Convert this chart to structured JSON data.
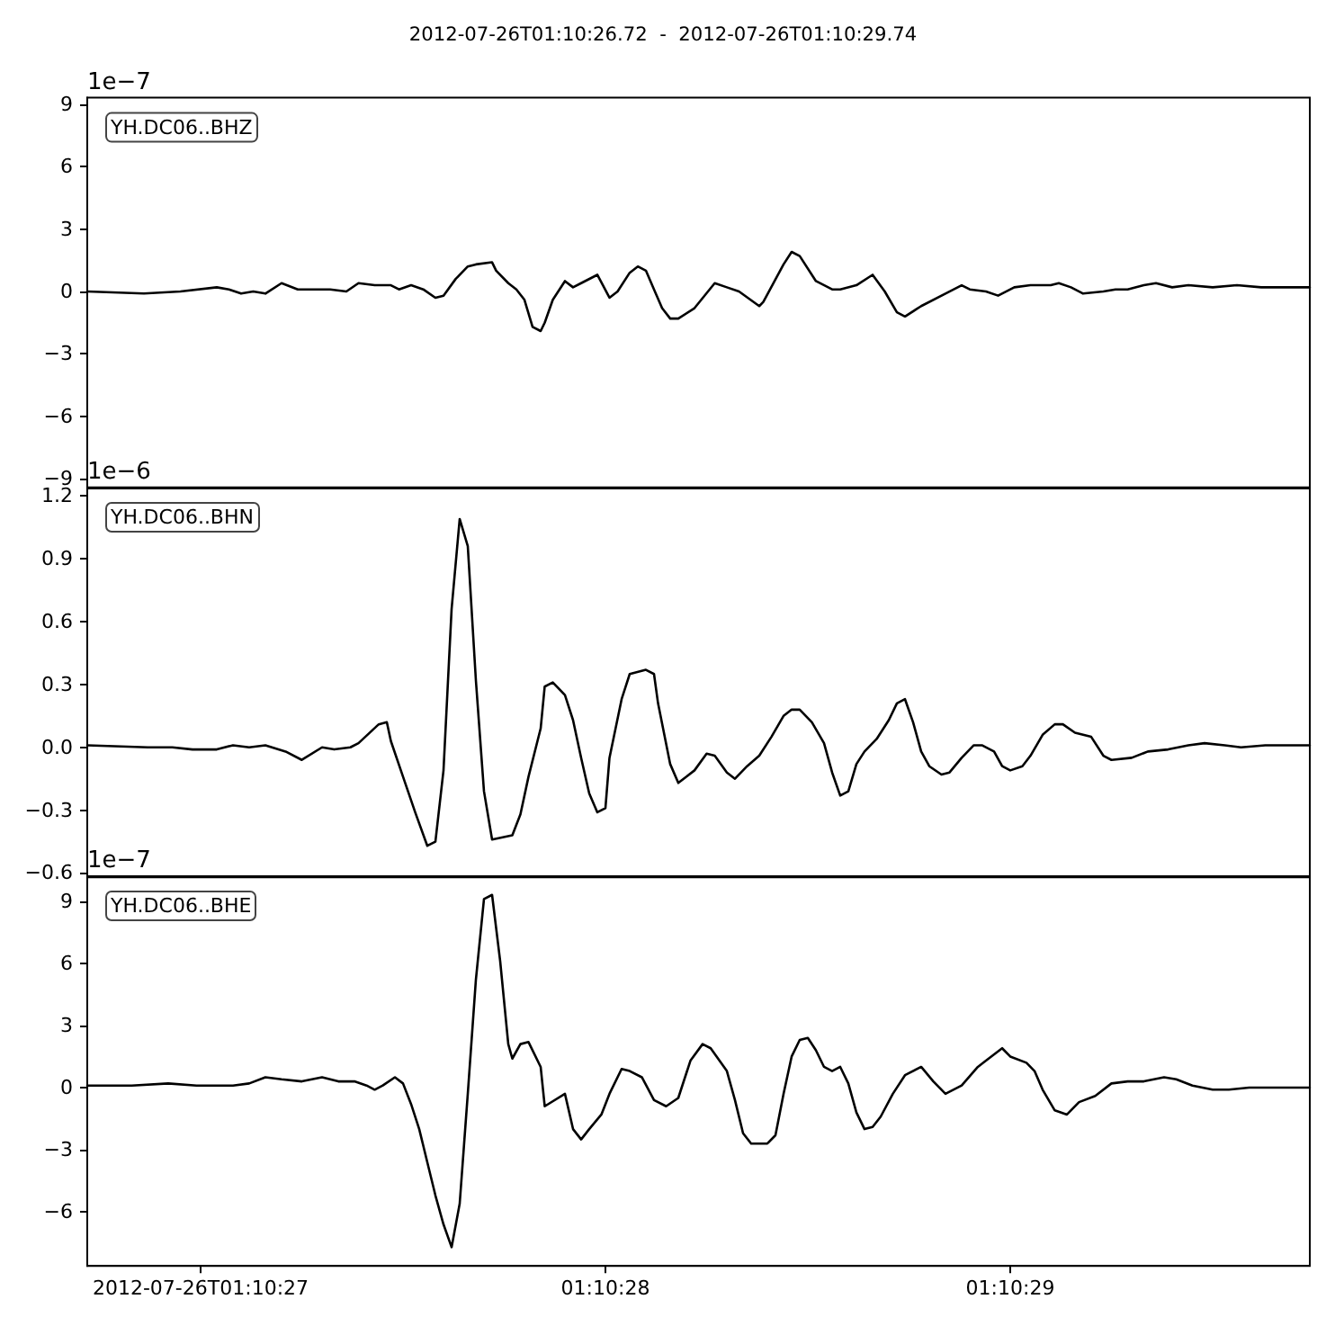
{
  "chart_data": [
    {
      "type": "line",
      "title": "2012-07-26T01:10:26.72  -  2012-07-26T01:10:29.74",
      "ylabel": "1e−7",
      "annotations": [
        "YH.DC06..BHZ"
      ],
      "color": "#000000",
      "tick_labels": "y",
      "xlim": [
        "2012-07-26T01:10:26.72",
        "2012-07-26T01:10:29.74"
      ],
      "ylim": [
        -9.4,
        9.3
      ],
      "yticks": [
        {
          "value": -9,
          "label": "−9"
        },
        {
          "value": -6,
          "label": "−6"
        },
        {
          "value": -3,
          "label": "−3"
        },
        0,
        3,
        6,
        9
      ],
      "x": [
        "2012-07-26T01:10:26.72",
        "2012-07-26T01:10:26.86",
        "2012-07-26T01:10:26.95",
        "2012-07-26T01:10:27.04",
        "2012-07-26T01:10:27.07",
        "2012-07-26T01:10:27.10",
        "2012-07-26T01:10:27.13",
        "2012-07-26T01:10:27.16",
        "2012-07-26T01:10:27.20",
        "2012-07-26T01:10:27.24",
        "2012-07-26T01:10:27.27",
        "2012-07-26T01:10:27.32",
        "2012-07-26T01:10:27.36",
        "2012-07-26T01:10:27.39",
        "2012-07-26T01:10:27.43",
        "2012-07-26T01:10:27.47",
        "2012-07-26T01:10:27.49",
        "2012-07-26T01:10:27.52",
        "2012-07-26T01:10:27.55",
        "2012-07-26T01:10:27.58",
        "2012-07-26T01:10:27.60",
        "2012-07-26T01:10:27.63",
        "2012-07-26T01:10:27.66",
        "2012-07-26T01:10:27.68",
        "2012-07-26T01:10:27.72",
        "2012-07-26T01:10:27.73",
        "2012-07-26T01:10:27.76",
        "2012-07-26T01:10:27.78",
        "2012-07-26T01:10:27.80",
        "2012-07-26T01:10:27.82",
        "2012-07-26T01:10:27.84",
        "2012-07-26T01:10:27.85",
        "2012-07-26T01:10:27.87",
        "2012-07-26T01:10:27.90",
        "2012-07-26T01:10:27.92",
        "2012-07-26T01:10:27.94",
        "2012-07-26T01:10:27.98",
        "2012-07-26T01:10:28.01",
        "2012-07-26T01:10:28.03",
        "2012-07-26T01:10:28.06",
        "2012-07-26T01:10:28.08",
        "2012-07-26T01:10:28.10",
        "2012-07-26T01:10:28.12",
        "2012-07-26T01:10:28.14",
        "2012-07-26T01:10:28.16",
        "2012-07-26T01:10:28.18",
        "2012-07-26T01:10:28.22",
        "2012-07-26T01:10:28.27",
        "2012-07-26T01:10:28.30",
        "2012-07-26T01:10:28.33",
        "2012-07-26T01:10:28.38",
        "2012-07-26T01:10:28.39",
        "2012-07-26T01:10:28.44",
        "2012-07-26T01:10:28.46",
        "2012-07-26T01:10:28.48",
        "2012-07-26T01:10:28.52",
        "2012-07-26T01:10:28.56",
        "2012-07-26T01:10:28.58",
        "2012-07-26T01:10:28.62",
        "2012-07-26T01:10:28.66",
        "2012-07-26T01:10:28.69",
        "2012-07-26T01:10:28.72",
        "2012-07-26T01:10:28.74",
        "2012-07-26T01:10:28.78",
        "2012-07-26T01:10:28.84",
        "2012-07-26T01:10:28.88",
        "2012-07-26T01:10:28.90",
        "2012-07-26T01:10:28.94",
        "2012-07-26T01:10:28.97",
        "2012-07-26T01:10:29.01",
        "2012-07-26T01:10:29.05",
        "2012-07-26T01:10:29.10",
        "2012-07-26T01:10:29.12",
        "2012-07-26T01:10:29.15",
        "2012-07-26T01:10:29.18",
        "2012-07-26T01:10:29.23",
        "2012-07-26T01:10:29.26",
        "2012-07-26T01:10:29.29",
        "2012-07-26T01:10:29.33",
        "2012-07-26T01:10:29.36",
        "2012-07-26T01:10:29.40",
        "2012-07-26T01:10:29.44",
        "2012-07-26T01:10:29.50",
        "2012-07-26T01:10:29.56",
        "2012-07-26T01:10:29.62",
        "2012-07-26T01:10:29.67",
        "2012-07-26T01:10:29.74"
      ],
      "values": [
        0.0,
        -0.1,
        0.0,
        0.2,
        0.1,
        -0.1,
        0.0,
        -0.1,
        0.4,
        0.1,
        0.1,
        0.1,
        0.0,
        0.4,
        0.3,
        0.3,
        0.1,
        0.3,
        0.1,
        -0.3,
        -0.2,
        0.6,
        1.2,
        1.3,
        1.4,
        1.0,
        0.4,
        0.1,
        -0.4,
        -1.7,
        -1.9,
        -1.5,
        -0.4,
        0.5,
        0.2,
        0.4,
        0.8,
        -0.3,
        0.0,
        0.9,
        1.2,
        1.0,
        0.1,
        -0.8,
        -1.3,
        -1.3,
        -0.8,
        0.4,
        0.2,
        0.0,
        -0.7,
        -0.5,
        1.3,
        1.9,
        1.7,
        0.5,
        0.1,
        0.1,
        0.3,
        0.8,
        0.0,
        -1.0,
        -1.2,
        -0.7,
        -0.1,
        0.3,
        0.1,
        0.0,
        -0.2,
        0.2,
        0.3,
        0.3,
        0.4,
        0.2,
        -0.1,
        0.0,
        0.1,
        0.1,
        0.3,
        0.4,
        0.2,
        0.3,
        0.2,
        0.3,
        0.2,
        0.2,
        0.2
      ]
    },
    {
      "type": "line",
      "ylabel": "1e−6",
      "annotations": [
        "YH.DC06..BHN"
      ],
      "color": "#000000",
      "tick_labels": "y",
      "xlim": [
        "2012-07-26T01:10:26.72",
        "2012-07-26T01:10:29.74"
      ],
      "ylim": [
        -0.62,
        1.24
      ],
      "yticks": [
        {
          "value": -0.6,
          "label": "−0.6"
        },
        {
          "value": -0.3,
          "label": "−0.3"
        },
        {
          "value": 0,
          "label": "0.0"
        },
        0.3,
        0.6,
        0.9,
        1.2
      ],
      "x": [
        "2012-07-26T01:10:26.72",
        "2012-07-26T01:10:26.87",
        "2012-07-26T01:10:26.93",
        "2012-07-26T01:10:26.98",
        "2012-07-26T01:10:27.04",
        "2012-07-26T01:10:27.08",
        "2012-07-26T01:10:27.12",
        "2012-07-26T01:10:27.16",
        "2012-07-26T01:10:27.21",
        "2012-07-26T01:10:27.25",
        "2012-07-26T01:10:27.30",
        "2012-07-26T01:10:27.33",
        "2012-07-26T01:10:27.37",
        "2012-07-26T01:10:27.39",
        "2012-07-26T01:10:27.44",
        "2012-07-26T01:10:27.46",
        "2012-07-26T01:10:27.47",
        "2012-07-26T01:10:27.50",
        "2012-07-26T01:10:27.53",
        "2012-07-26T01:10:27.56",
        "2012-07-26T01:10:27.58",
        "2012-07-26T01:10:27.60",
        "2012-07-26T01:10:27.62",
        "2012-07-26T01:10:27.64",
        "2012-07-26T01:10:27.66",
        "2012-07-26T01:10:27.68",
        "2012-07-26T01:10:27.70",
        "2012-07-26T01:10:27.72",
        "2012-07-26T01:10:27.77",
        "2012-07-26T01:10:27.79",
        "2012-07-26T01:10:27.81",
        "2012-07-26T01:10:27.84",
        "2012-07-26T01:10:27.85",
        "2012-07-26T01:10:27.87",
        "2012-07-26T01:10:27.90",
        "2012-07-26T01:10:27.92",
        "2012-07-26T01:10:27.94",
        "2012-07-26T01:10:27.96",
        "2012-07-26T01:10:27.98",
        "2012-07-26T01:10:28.00",
        "2012-07-26T01:10:28.01",
        "2012-07-26T01:10:28.04",
        "2012-07-26T01:10:28.06",
        "2012-07-26T01:10:28.10",
        "2012-07-26T01:10:28.12",
        "2012-07-26T01:10:28.13",
        "2012-07-26T01:10:28.16",
        "2012-07-26T01:10:28.18",
        "2012-07-26T01:10:28.22",
        "2012-07-26T01:10:28.25",
        "2012-07-26T01:10:28.27",
        "2012-07-26T01:10:28.30",
        "2012-07-26T01:10:28.32",
        "2012-07-26T01:10:28.35",
        "2012-07-26T01:10:28.38",
        "2012-07-26T01:10:28.41",
        "2012-07-26T01:10:28.44",
        "2012-07-26T01:10:28.46",
        "2012-07-26T01:10:28.48",
        "2012-07-26T01:10:28.51",
        "2012-07-26T01:10:28.54",
        "2012-07-26T01:10:28.56",
        "2012-07-26T01:10:28.58",
        "2012-07-26T01:10:28.60",
        "2012-07-26T01:10:28.62",
        "2012-07-26T01:10:28.64",
        "2012-07-26T01:10:28.67",
        "2012-07-26T01:10:28.70",
        "2012-07-26T01:10:28.72",
        "2012-07-26T01:10:28.74",
        "2012-07-26T01:10:28.76",
        "2012-07-26T01:10:28.78",
        "2012-07-26T01:10:28.80",
        "2012-07-26T01:10:28.83",
        "2012-07-26T01:10:28.85",
        "2012-07-26T01:10:28.88",
        "2012-07-26T01:10:28.91",
        "2012-07-26T01:10:28.93",
        "2012-07-26T01:10:28.96",
        "2012-07-26T01:10:28.98",
        "2012-07-26T01:10:29.00",
        "2012-07-26T01:10:29.03",
        "2012-07-26T01:10:29.05",
        "2012-07-26T01:10:29.08",
        "2012-07-26T01:10:29.11",
        "2012-07-26T01:10:29.13",
        "2012-07-26T01:10:29.16",
        "2012-07-26T01:10:29.20",
        "2012-07-26T01:10:29.23",
        "2012-07-26T01:10:29.25",
        "2012-07-26T01:10:29.30",
        "2012-07-26T01:10:29.34",
        "2012-07-26T01:10:29.39",
        "2012-07-26T01:10:29.44",
        "2012-07-26T01:10:29.48",
        "2012-07-26T01:10:29.53",
        "2012-07-26T01:10:29.57",
        "2012-07-26T01:10:29.63",
        "2012-07-26T01:10:29.74"
      ],
      "values": [
        0.01,
        0.0,
        0.0,
        -0.01,
        -0.01,
        0.01,
        0.0,
        0.01,
        -0.02,
        -0.06,
        0.0,
        -0.01,
        0.0,
        0.02,
        0.11,
        0.12,
        0.03,
        -0.14,
        -0.31,
        -0.47,
        -0.45,
        -0.11,
        0.66,
        1.09,
        0.96,
        0.32,
        -0.21,
        -0.44,
        -0.42,
        -0.32,
        -0.14,
        0.09,
        0.29,
        0.31,
        0.25,
        0.13,
        -0.05,
        -0.22,
        -0.31,
        -0.29,
        -0.05,
        0.23,
        0.35,
        0.37,
        0.35,
        0.21,
        -0.08,
        -0.17,
        -0.11,
        -0.03,
        -0.04,
        -0.12,
        -0.15,
        -0.09,
        -0.04,
        0.05,
        0.15,
        0.18,
        0.18,
        0.12,
        0.02,
        -0.12,
        -0.23,
        -0.21,
        -0.08,
        -0.02,
        0.04,
        0.13,
        0.21,
        0.23,
        0.12,
        -0.02,
        -0.09,
        -0.13,
        -0.12,
        -0.05,
        0.01,
        0.01,
        -0.02,
        -0.09,
        -0.11,
        -0.09,
        -0.04,
        0.06,
        0.11,
        0.11,
        0.07,
        0.05,
        -0.04,
        -0.06,
        -0.05,
        -0.02,
        -0.01,
        0.01,
        0.02,
        0.01,
        0.0,
        0.01,
        0.01
      ]
    },
    {
      "type": "line",
      "ylabel": "1e−7",
      "annotations": [
        "YH.DC06..BHE"
      ],
      "color": "#000000",
      "xlim": [
        "2012-07-26T01:10:26.72",
        "2012-07-26T01:10:29.74"
      ],
      "xticks": [
        {
          "value": "2012-07-26T01:10:27",
          "label": "2012-07-26T01:10:27"
        },
        {
          "value": "2012-07-26T01:10:28",
          "label": "01:10:28"
        },
        {
          "value": "2012-07-26T01:10:29",
          "label": "01:10:29"
        }
      ],
      "ylim": [
        -8.6,
        10.2
      ],
      "yticks": [
        {
          "value": -6,
          "label": "−6"
        },
        {
          "value": -3,
          "label": "−3"
        },
        0,
        3,
        6,
        9
      ],
      "x": [
        "2012-07-26T01:10:26.72",
        "2012-07-26T01:10:26.83",
        "2012-07-26T01:10:26.92",
        "2012-07-26T01:10:26.99",
        "2012-07-26T01:10:27.04",
        "2012-07-26T01:10:27.08",
        "2012-07-26T01:10:27.12",
        "2012-07-26T01:10:27.16",
        "2012-07-26T01:10:27.20",
        "2012-07-26T01:10:27.25",
        "2012-07-26T01:10:27.30",
        "2012-07-26T01:10:27.34",
        "2012-07-26T01:10:27.38",
        "2012-07-26T01:10:27.41",
        "2012-07-26T01:10:27.43",
        "2012-07-26T01:10:27.45",
        "2012-07-26T01:10:27.48",
        "2012-07-26T01:10:27.50",
        "2012-07-26T01:10:27.52",
        "2012-07-26T01:10:27.54",
        "2012-07-26T01:10:27.56",
        "2012-07-26T01:10:27.58",
        "2012-07-26T01:10:27.60",
        "2012-07-26T01:10:27.62",
        "2012-07-26T01:10:27.64",
        "2012-07-26T01:10:27.66",
        "2012-07-26T01:10:27.68",
        "2012-07-26T01:10:27.70",
        "2012-07-26T01:10:27.72",
        "2012-07-26T01:10:27.74",
        "2012-07-26T01:10:27.76",
        "2012-07-26T01:10:27.77",
        "2012-07-26T01:10:27.79",
        "2012-07-26T01:10:27.81",
        "2012-07-26T01:10:27.84",
        "2012-07-26T01:10:27.85",
        "2012-07-26T01:10:27.90",
        "2012-07-26T01:10:27.92",
        "2012-07-26T01:10:27.94",
        "2012-07-26T01:10:27.96",
        "2012-07-26T01:10:27.99",
        "2012-07-26T01:10:28.01",
        "2012-07-26T01:10:28.04",
        "2012-07-26T01:10:28.06",
        "2012-07-26T01:10:28.09",
        "2012-07-26T01:10:28.12",
        "2012-07-26T01:10:28.15",
        "2012-07-26T01:10:28.18",
        "2012-07-26T01:10:28.21",
        "2012-07-26T01:10:28.24",
        "2012-07-26T01:10:28.26",
        "2012-07-26T01:10:28.30",
        "2012-07-26T01:10:28.32",
        "2012-07-26T01:10:28.34",
        "2012-07-26T01:10:28.36",
        "2012-07-26T01:10:28.40",
        "2012-07-26T01:10:28.42",
        "2012-07-26T01:10:28.44",
        "2012-07-26T01:10:28.46",
        "2012-07-26T01:10:28.48",
        "2012-07-26T01:10:28.50",
        "2012-07-26T01:10:28.52",
        "2012-07-26T01:10:28.54",
        "2012-07-26T01:10:28.56",
        "2012-07-26T01:10:28.58",
        "2012-07-26T01:10:28.60",
        "2012-07-26T01:10:28.62",
        "2012-07-26T01:10:28.64",
        "2012-07-26T01:10:28.66",
        "2012-07-26T01:10:28.68",
        "2012-07-26T01:10:28.71",
        "2012-07-26T01:10:28.74",
        "2012-07-26T01:10:28.78",
        "2012-07-26T01:10:28.81",
        "2012-07-26T01:10:28.84",
        "2012-07-26T01:10:28.88",
        "2012-07-26T01:10:28.92",
        "2012-07-26T01:10:28.94",
        "2012-07-26T01:10:28.98",
        "2012-07-26T01:10:29.00",
        "2012-07-26T01:10:29.04",
        "2012-07-26T01:10:29.06",
        "2012-07-26T01:10:29.08",
        "2012-07-26T01:10:29.11",
        "2012-07-26T01:10:29.14",
        "2012-07-26T01:10:29.17",
        "2012-07-26T01:10:29.21",
        "2012-07-26T01:10:29.25",
        "2012-07-26T01:10:29.29",
        "2012-07-26T01:10:29.33",
        "2012-07-26T01:10:29.38",
        "2012-07-26T01:10:29.41",
        "2012-07-26T01:10:29.45",
        "2012-07-26T01:10:29.50",
        "2012-07-26T01:10:29.54",
        "2012-07-26T01:10:29.59",
        "2012-07-26T01:10:29.66",
        "2012-07-26T01:10:29.74"
      ],
      "values": [
        0.1,
        0.1,
        0.2,
        0.1,
        0.1,
        0.1,
        0.2,
        0.5,
        0.4,
        0.3,
        0.5,
        0.3,
        0.3,
        0.1,
        -0.1,
        0.1,
        0.5,
        0.2,
        -0.8,
        -2.0,
        -3.6,
        -5.2,
        -6.6,
        -7.7,
        -5.6,
        -0.3,
        5.2,
        9.1,
        9.3,
        6.1,
        2.1,
        1.4,
        2.1,
        2.2,
        1.0,
        -0.9,
        -0.3,
        -2.0,
        -2.5,
        -2.0,
        -1.3,
        -0.3,
        0.9,
        0.8,
        0.5,
        -0.6,
        -0.9,
        -0.5,
        1.3,
        2.1,
        1.9,
        0.8,
        -0.6,
        -2.2,
        -2.7,
        -2.7,
        -2.3,
        -0.3,
        1.5,
        2.3,
        2.4,
        1.8,
        1.0,
        0.8,
        1.0,
        0.2,
        -1.2,
        -2.0,
        -1.9,
        -1.4,
        -0.3,
        0.6,
        1.0,
        0.3,
        -0.3,
        0.1,
        1.0,
        1.3,
        1.9,
        1.5,
        1.2,
        0.8,
        -0.1,
        -1.1,
        -1.3,
        -0.7,
        -0.4,
        0.2,
        0.3,
        0.3,
        0.5,
        0.4,
        0.1,
        -0.1,
        -0.1,
        0.0,
        0.0,
        0.0
      ]
    }
  ]
}
